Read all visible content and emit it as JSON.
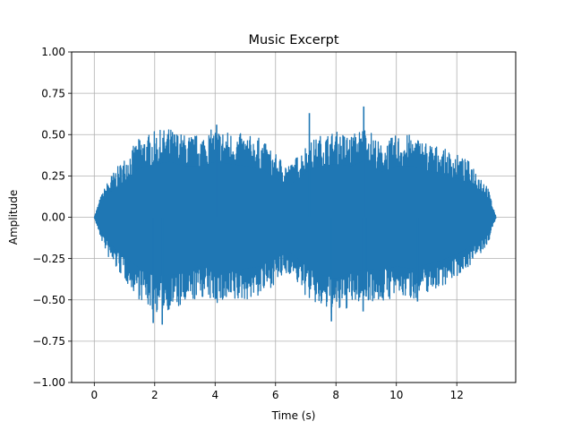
{
  "chart_data": {
    "type": "line",
    "title": "Music Excerpt",
    "xlabel": "Time (s)",
    "ylabel": "Amplitude",
    "xlim": [
      -0.75,
      13.95
    ],
    "ylim": [
      -1.0,
      1.0
    ],
    "x_ticks": [
      0,
      2,
      4,
      6,
      8,
      10,
      12
    ],
    "y_ticks": [
      -1.0,
      -0.75,
      -0.5,
      -0.25,
      0.0,
      0.25,
      0.5,
      0.75,
      1.0
    ],
    "x_tick_labels": [
      "0",
      "2",
      "4",
      "6",
      "8",
      "10",
      "12"
    ],
    "y_tick_labels": [
      "−1.00",
      "−0.75",
      "−0.50",
      "−0.25",
      "0.00",
      "0.25",
      "0.50",
      "0.75",
      "1.00"
    ],
    "grid": true,
    "series": [
      {
        "color": "#1f77b4",
        "duration": 13.3,
        "envelope": {
          "t": [
            0.0,
            0.2,
            0.5,
            1.0,
            1.5,
            2.0,
            2.5,
            3.0,
            3.5,
            4.0,
            4.5,
            5.0,
            5.5,
            6.0,
            6.5,
            7.0,
            7.5,
            8.0,
            8.5,
            9.0,
            9.5,
            10.0,
            10.5,
            11.0,
            11.5,
            12.0,
            12.5,
            13.0,
            13.3
          ],
          "pos": [
            0.0,
            0.12,
            0.24,
            0.36,
            0.48,
            0.52,
            0.54,
            0.5,
            0.5,
            0.54,
            0.52,
            0.5,
            0.48,
            0.38,
            0.32,
            0.44,
            0.5,
            0.52,
            0.5,
            0.56,
            0.44,
            0.5,
            0.5,
            0.46,
            0.42,
            0.38,
            0.33,
            0.2,
            0.0
          ],
          "neg": [
            0.0,
            -0.12,
            -0.26,
            -0.38,
            -0.5,
            -0.58,
            -0.56,
            -0.55,
            -0.48,
            -0.52,
            -0.54,
            -0.5,
            -0.48,
            -0.4,
            -0.34,
            -0.48,
            -0.56,
            -0.6,
            -0.54,
            -0.5,
            -0.52,
            -0.48,
            -0.5,
            -0.46,
            -0.42,
            -0.36,
            -0.28,
            -0.18,
            0.0
          ]
        },
        "peaks": [
          {
            "x": 1.95,
            "y": -0.64
          },
          {
            "x": 2.25,
            "y": -0.65
          },
          {
            "x": 4.05,
            "y": 0.56
          },
          {
            "x": 7.12,
            "y": 0.63
          },
          {
            "x": 7.85,
            "y": -0.63
          },
          {
            "x": 8.92,
            "y": 0.67
          },
          {
            "x": 8.9,
            "y": -0.57
          },
          {
            "x": 9.0,
            "y": -0.48
          },
          {
            "x": 10.7,
            "y": -0.51
          }
        ]
      }
    ]
  }
}
